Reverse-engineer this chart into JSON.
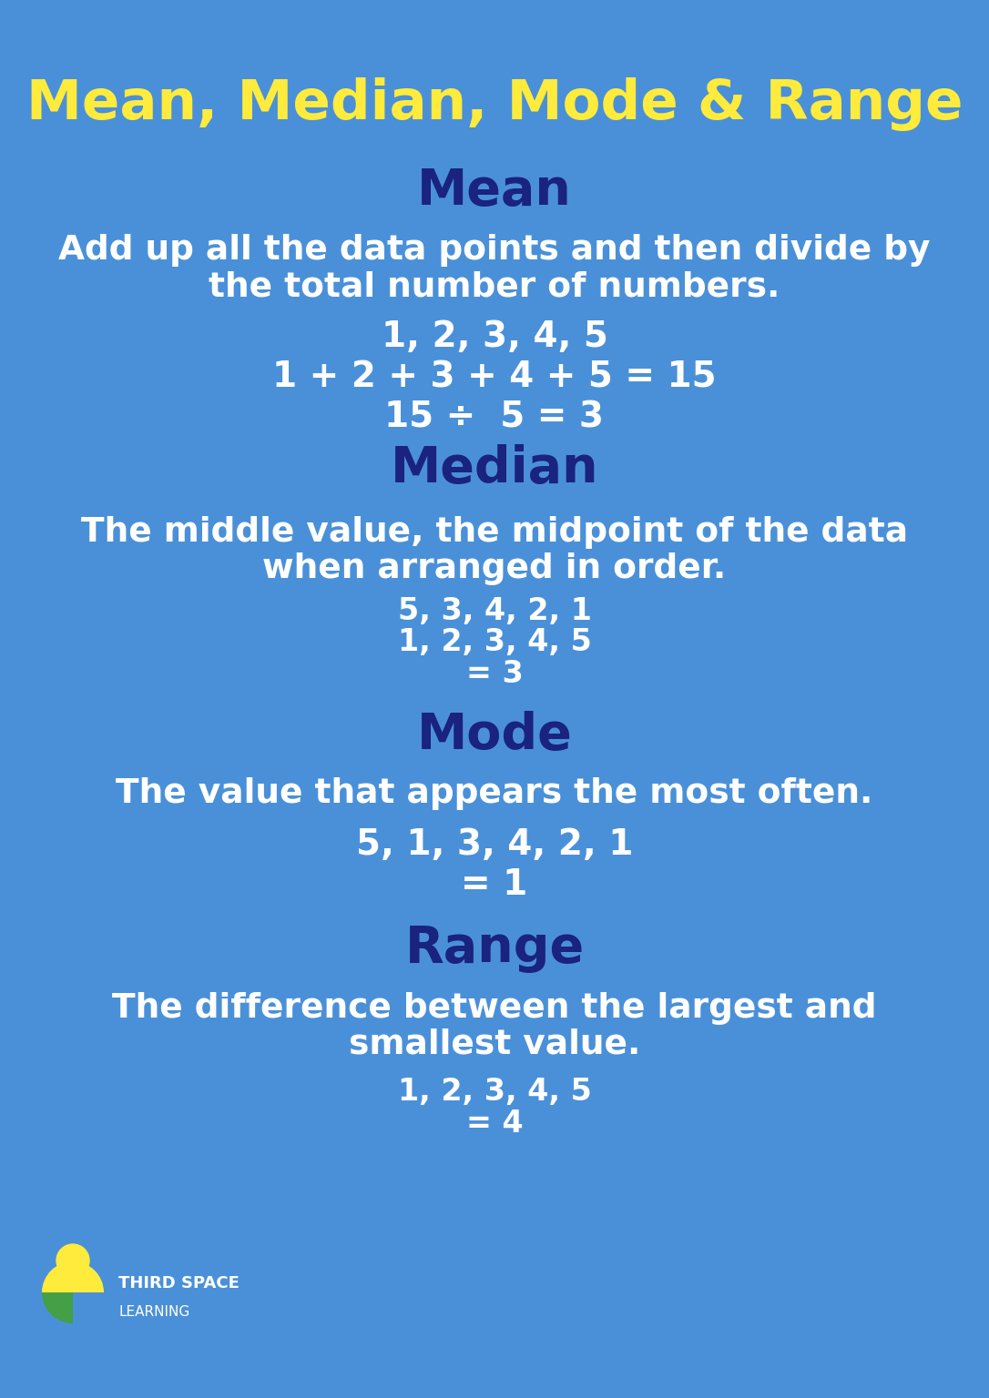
{
  "background_color": "#4A90D9",
  "title": "Mean, Median, Mode & Range",
  "title_color": "#FFEB3B",
  "title_fontsize": 44,
  "section_title_color": "#1a237e",
  "section_title_fontsize": 40,
  "body_text_color": "#FFFFFF",
  "body_fontsize": 27,
  "example_fontsize": 28,
  "sections": [
    {
      "title": "Mean",
      "description": [
        "Add up all the data points and then divide by",
        "the total number of numbers."
      ],
      "examples": [
        "1, 2, 3, 4, 5",
        "1 + 2 + 3 + 4 + 5 = 15",
        "15 ÷  5 = 3"
      ]
    },
    {
      "title": "Median",
      "description": [
        "The middle value, the midpoint of the data",
        "when arranged in order."
      ],
      "examples": [
        "5, 3, 4, 2, 1",
        "1, 2, 3, 4, 5",
        "= 3"
      ]
    },
    {
      "title": "Mode",
      "description": [
        "The value that appears the most often."
      ],
      "examples": [
        "5, 1, 3, 4, 2, 1",
        "= 1"
      ]
    },
    {
      "title": "Range",
      "description": [
        "The difference between the largest and",
        "smallest value."
      ],
      "examples": [
        "1, 2, 3, 4, 5",
        "= 4"
      ]
    }
  ],
  "logo_text_line1": "THIRD SPACE",
  "logo_text_line2": "LEARNING",
  "logo_yellow": "#FFEB3B",
  "logo_green": "#43A047"
}
